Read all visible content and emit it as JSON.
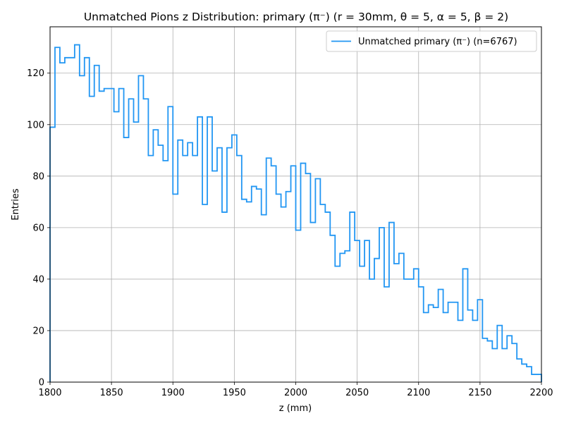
{
  "chart_data": {
    "type": "histogram",
    "title": "Unmatched Pions z Distribution: primary (π⁻) (r = 30mm, θ = 5, α = 5, β = 2)",
    "xlabel": "z (mm)",
    "ylabel": "Entries",
    "xlim": [
      1800,
      2200
    ],
    "ylim": [
      0,
      138
    ],
    "x_ticks": [
      "1800",
      "1850",
      "1900",
      "1950",
      "2000",
      "2050",
      "2100",
      "2150",
      "2200"
    ],
    "y_ticks": [
      "0",
      "20",
      "40",
      "60",
      "80",
      "100",
      "120"
    ],
    "grid": true,
    "legend_position": "top-right",
    "color": "#2196f3",
    "bin_edges": [
      1800,
      1804,
      1808,
      1812,
      1816,
      1820,
      1824,
      1828,
      1832,
      1836,
      1840,
      1844,
      1848,
      1852,
      1856,
      1860,
      1864,
      1868,
      1872,
      1876,
      1880,
      1884,
      1888,
      1892,
      1896,
      1900,
      1904,
      1908,
      1912,
      1916,
      1920,
      1924,
      1928,
      1932,
      1936,
      1940,
      1944,
      1948,
      1952,
      1956,
      1960,
      1964,
      1968,
      1972,
      1976,
      1980,
      1984,
      1988,
      1992,
      1996,
      2000,
      2004,
      2008,
      2012,
      2016,
      2020,
      2024,
      2028,
      2032,
      2036,
      2040,
      2044,
      2048,
      2052,
      2056,
      2060,
      2064,
      2068,
      2072,
      2076,
      2080,
      2084,
      2088,
      2092,
      2096,
      2100,
      2104,
      2108,
      2112,
      2116,
      2120,
      2124,
      2128,
      2132,
      2136,
      2140,
      2144,
      2148,
      2152,
      2156,
      2160,
      2164,
      2168,
      2172,
      2176,
      2180,
      2184,
      2188,
      2192,
      2196,
      2200
    ],
    "series": [
      {
        "name": "Unmatched primary (π⁻) (n=6767)",
        "values": [
          99,
          130,
          124,
          126,
          126,
          131,
          119,
          126,
          111,
          123,
          113,
          114,
          114,
          105,
          114,
          95,
          110,
          101,
          119,
          110,
          88,
          98,
          92,
          86,
          107,
          73,
          94,
          88,
          93,
          88,
          103,
          69,
          103,
          82,
          91,
          66,
          91,
          96,
          88,
          71,
          70,
          76,
          75,
          65,
          87,
          84,
          73,
          68,
          74,
          84,
          59,
          85,
          81,
          62,
          79,
          69,
          66,
          57,
          45,
          50,
          51,
          66,
          55,
          45,
          55,
          40,
          48,
          60,
          37,
          62,
          46,
          50,
          40,
          40,
          44,
          37,
          27,
          30,
          29,
          36,
          27,
          31,
          31,
          24,
          44,
          28,
          24,
          32,
          17,
          16,
          13,
          22,
          13,
          18,
          15,
          9,
          7,
          6,
          3,
          3
        ]
      }
    ]
  }
}
